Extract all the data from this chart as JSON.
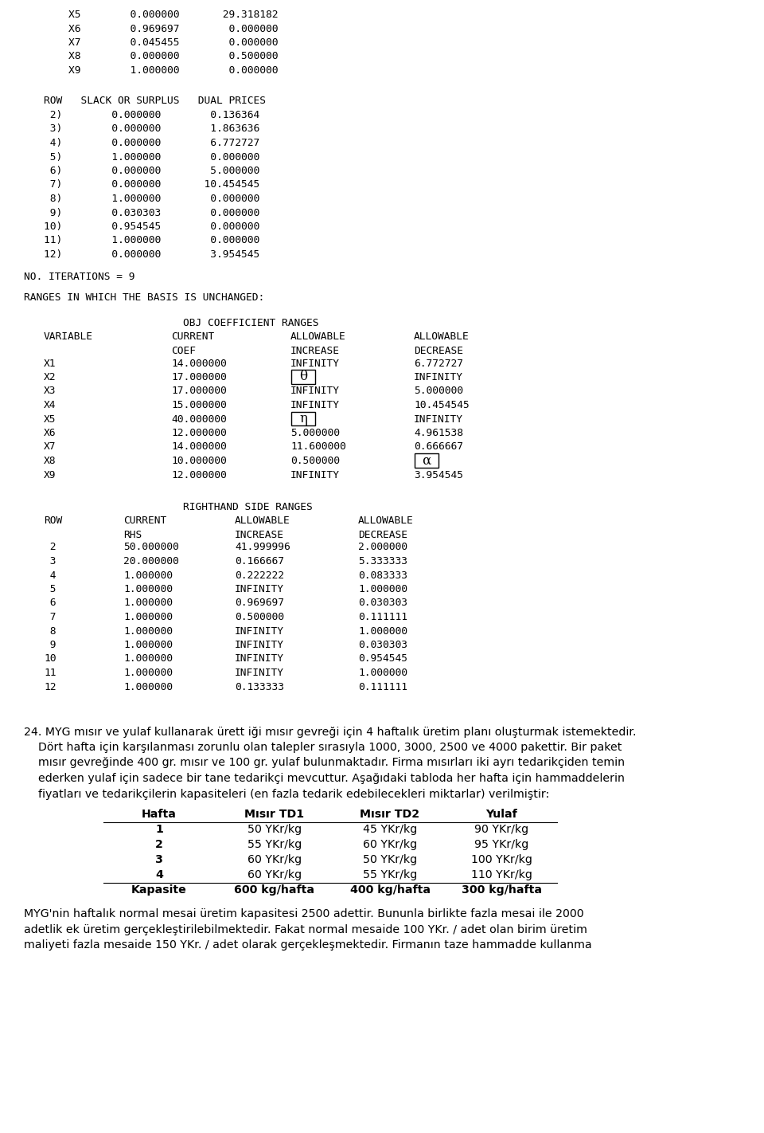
{
  "bg_color": "#ffffff",
  "top_section": [
    "    X5        0.000000       29.318182",
    "    X6        0.969697        0.000000",
    "    X7        0.045455        0.000000",
    "    X8        0.000000        0.500000",
    "    X9        1.000000        0.000000"
  ],
  "slack_header": "ROW   SLACK OR SURPLUS   DUAL PRICES",
  "slack_rows": [
    " 2)        0.000000        0.136364",
    " 3)        0.000000        1.863636",
    " 4)        0.000000        6.772727",
    " 5)        1.000000        0.000000",
    " 6)        0.000000        5.000000",
    " 7)        0.000000       10.454545",
    " 8)        1.000000        0.000000",
    " 9)        0.030303        0.000000",
    "10)        0.954545        0.000000",
    "11)        1.000000        0.000000",
    "12)        0.000000        3.954545"
  ],
  "iterations_line": "NO. ITERATIONS = 9",
  "ranges_header": "RANGES IN WHICH THE BASIS IS UNCHANGED:",
  "obj_coef_title": "OBJ COEFFICIENT RANGES",
  "obj_col_headers": [
    "VARIABLE",
    "CURRENT",
    "ALLOWABLE",
    "ALLOWABLE"
  ],
  "obj_col_headers2": [
    "",
    "COEF",
    "INCREASE",
    "DECREASE"
  ],
  "obj_rows": [
    {
      "var": "X1",
      "coef": "14.000000",
      "increase": "INFINITY",
      "decrease": "6.772727",
      "box_inc": false,
      "box_dec": false
    },
    {
      "var": "X2",
      "coef": "17.000000",
      "increase": "θ",
      "decrease": "INFINITY",
      "box_inc": true,
      "box_dec": false
    },
    {
      "var": "X3",
      "coef": "17.000000",
      "increase": "INFINITY",
      "decrease": "5.000000",
      "box_inc": false,
      "box_dec": false
    },
    {
      "var": "X4",
      "coef": "15.000000",
      "increase": "INFINITY",
      "decrease": "10.454545",
      "box_inc": false,
      "box_dec": false
    },
    {
      "var": "X5",
      "coef": "40.000000",
      "increase": "η",
      "decrease": "INFINITY",
      "box_inc": true,
      "box_dec": false
    },
    {
      "var": "X6",
      "coef": "12.000000",
      "increase": "5.000000",
      "decrease": "4.961538",
      "box_inc": false,
      "box_dec": false
    },
    {
      "var": "X7",
      "coef": "14.000000",
      "increase": "11.600000",
      "decrease": "0.666667",
      "box_inc": false,
      "box_dec": false
    },
    {
      "var": "X8",
      "coef": "10.000000",
      "increase": "0.500000",
      "decrease": "α",
      "box_inc": false,
      "box_dec": true
    },
    {
      "var": "X9",
      "coef": "12.000000",
      "increase": "INFINITY",
      "decrease": "3.954545",
      "box_inc": false,
      "box_dec": false
    }
  ],
  "rhs_title": "RIGHTHAND SIDE RANGES",
  "rhs_col_headers": [
    "ROW",
    "CURRENT",
    "ALLOWABLE",
    "ALLOWABLE"
  ],
  "rhs_col_headers2": [
    "",
    "RHS",
    "INCREASE",
    "DECREASE"
  ],
  "rhs_rows": [
    [
      " 2",
      "50.000000",
      "41.999996",
      "2.000000"
    ],
    [
      " 3",
      "20.000000",
      "0.166667",
      "5.333333"
    ],
    [
      " 4",
      "1.000000",
      "0.222222",
      "0.083333"
    ],
    [
      " 5",
      "1.000000",
      "INFINITY",
      "1.000000"
    ],
    [
      " 6",
      "1.000000",
      "0.969697",
      "0.030303"
    ],
    [
      " 7",
      "1.000000",
      "0.500000",
      "0.111111"
    ],
    [
      " 8",
      "1.000000",
      "INFINITY",
      "1.000000"
    ],
    [
      " 9",
      "1.000000",
      "INFINITY",
      "0.030303"
    ],
    [
      "10",
      "1.000000",
      "INFINITY",
      "0.954545"
    ],
    [
      "11",
      "1.000000",
      "INFINITY",
      "1.000000"
    ],
    [
      "12",
      "1.000000",
      "0.133333",
      "0.111111"
    ]
  ],
  "problem_text": [
    "24. MYG mısır ve yulaf kullanarak ürett iği mısır gevreği için 4 haftalık üretim planı oluşturmak istemektedir.",
    "    Dört hafta için karşılanması zorunlu olan talepler sırasıyla 1000, 3000, 2500 ve 4000 pakettir. Bir paket",
    "    mısır gevreğinde 400 gr. mısır ve 100 gr. yulaf bulunmaktadır. Firma mısırları iki ayrı tedarikçiden temin",
    "    ederken yulaf için sadece bir tane tedarikçi mevcuttur. Aşağıdaki tabloda her hafta için hammaddelerin",
    "    fiyatları ve tedarikçilerin kapasiteleri (en fazla tedarik edebilecekleri miktarlar) verilmiştir:"
  ],
  "table_cols": [
    130,
    270,
    420,
    560,
    700
  ],
  "table_header": [
    "Hafta",
    "Mısır TD1",
    "Mısır TD2",
    "Yulaf"
  ],
  "table_rows": [
    [
      "1",
      "50 YKr/kg",
      "45 YKr/kg",
      "90 YKr/kg"
    ],
    [
      "2",
      "55 YKr/kg",
      "60 YKr/kg",
      "95 YKr/kg"
    ],
    [
      "3",
      "60 YKr/kg",
      "50 YKr/kg",
      "100 YKr/kg"
    ],
    [
      "4",
      "60 YKr/kg",
      "55 YKr/kg",
      "110 YKr/kg"
    ]
  ],
  "table_footer": [
    "Kapasite",
    "600 kg/hafta",
    "400 kg/hafta",
    "300 kg/hafta"
  ],
  "bottom_text": [
    "MYG'nin haftalık normal mesai üretim kapasitesi 2500 adettir. Bununla birlikte fazla mesai ile 2000",
    "adetlik ek üretim gerçekleştirilebilmektedir. Fakat normal mesaide 100 YKr. / adet olan birim üretim",
    "maliyeti fazla mesaide 150 YKr. / adet olarak gerçekleşmektedir. Firmanın taze hammadde kullanma"
  ],
  "lh": 17.5,
  "mono_fs": 9.3,
  "sans_fs": 10.5
}
